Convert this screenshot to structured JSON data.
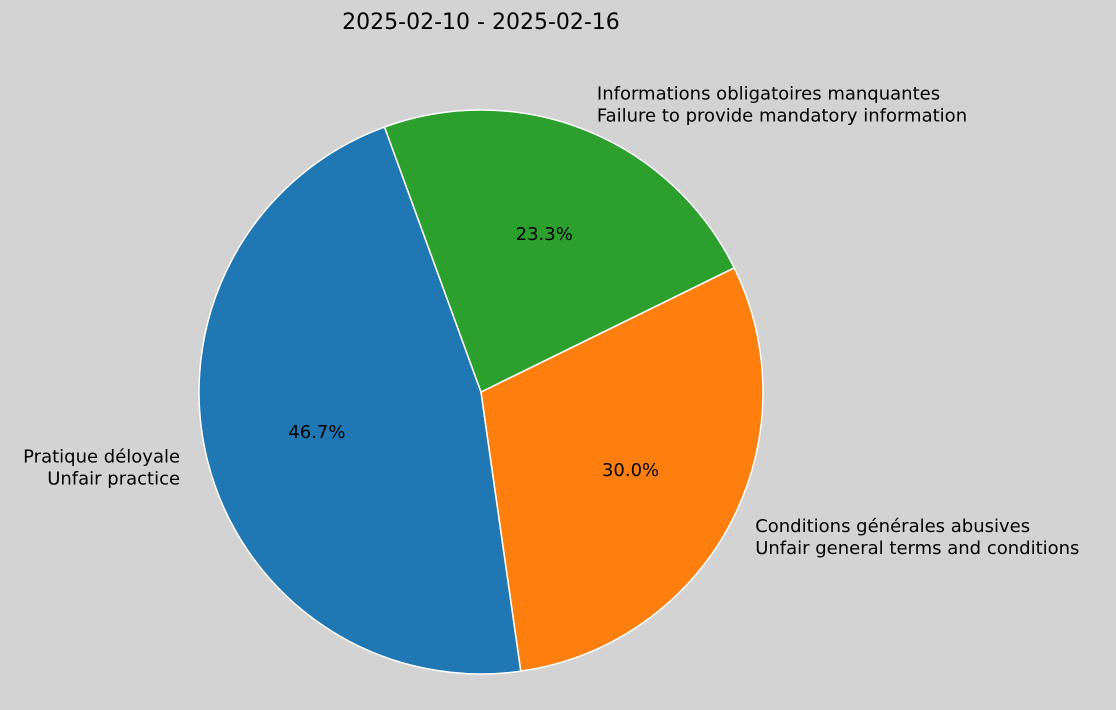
{
  "chart_data": {
    "type": "pie",
    "title": "2025-02-10 - 2025-02-16",
    "start_angle_deg": 110,
    "direction": "counterclockwise",
    "slices": [
      {
        "label_line1": "Pratique déloyale",
        "label_line2": "Unfair practice",
        "value": 46.7,
        "pct_text": "46.7%",
        "color": "#1f77b4"
      },
      {
        "label_line1": "Conditions générales abusives",
        "label_line2": "Unfair general terms and conditions",
        "value": 30.0,
        "pct_text": "30.0%",
        "color": "#ff7f0e"
      },
      {
        "label_line1": "Informations obligatoires manquantes",
        "label_line2": "Failure to provide mandatory information",
        "value": 23.3,
        "pct_text": "23.3%",
        "color": "#2ca02c"
      }
    ],
    "background": "#d3d3d3"
  }
}
